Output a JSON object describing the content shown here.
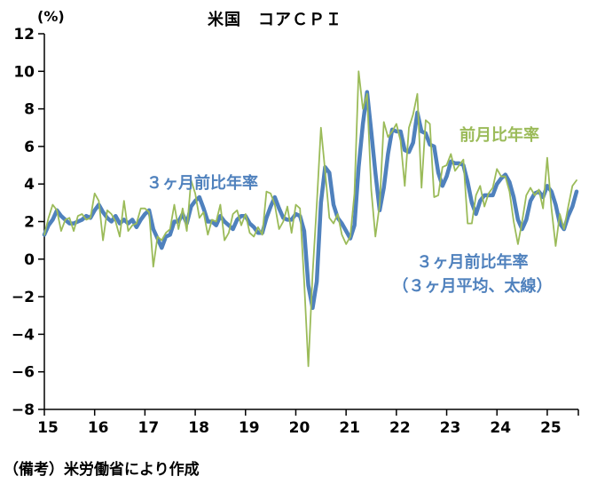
{
  "header": {
    "title": "米国　コアＣＰＩ",
    "unit_label": "(%)"
  },
  "note": "（備考）米労働省により作成",
  "annotations": {
    "three_month": "３ヶ月前比年率",
    "monthly": "前月比年率",
    "three_month_avg_line1": "３ヶ月前比年率",
    "three_month_avg_line2": "（３ヶ月平均、太線）"
  },
  "colors": {
    "monthly": "#9BBB59",
    "three_month_avg": "#4F81BD",
    "axis": "#000000"
  },
  "chart_data": {
    "type": "line",
    "title": "米国　コアＣＰＩ",
    "ylabel": "(%)",
    "ylim": [
      -8,
      12
    ],
    "ytick_step": 2,
    "ytick_labels": [
      "12",
      "10",
      "8",
      "6",
      "4",
      "2",
      "0",
      "−2",
      "−4",
      "−6",
      "−8"
    ],
    "x_tick_labels": [
      "15",
      "16",
      "17",
      "18",
      "19",
      "20",
      "21",
      "22",
      "23",
      "24",
      "25"
    ],
    "x_frequency": "monthly",
    "x_range": "2015-01 to 2025-08",
    "grid": false,
    "source_note": "（備考）米労働省により作成",
    "series": [
      {
        "id": "three_month_avg",
        "name": "３ヶ月前比年率（３ヶ月平均、太線）",
        "color": "#4F81BD",
        "width": 4.5,
        "values": [
          1.3,
          1.8,
          2.1,
          2.6,
          2.3,
          2.1,
          1.9,
          1.9,
          2.0,
          2.1,
          2.3,
          2.2,
          2.6,
          2.9,
          2.5,
          2.2,
          2.0,
          2.3,
          1.9,
          2.1,
          1.9,
          2.1,
          1.7,
          2.1,
          2.4,
          2.6,
          1.6,
          1.1,
          0.6,
          1.2,
          1.3,
          2.0,
          2.0,
          2.4,
          1.9,
          2.8,
          3.1,
          3.3,
          2.7,
          2.0,
          2.0,
          1.8,
          2.3,
          2.0,
          1.8,
          1.6,
          2.1,
          2.3,
          2.3,
          1.9,
          1.7,
          1.4,
          1.4,
          2.2,
          2.8,
          3.3,
          2.7,
          2.2,
          2.1,
          2.1,
          2.4,
          2.3,
          1.5,
          -1.4,
          -2.6,
          -1.2,
          3.0,
          4.9,
          4.6,
          2.9,
          2.2,
          1.9,
          1.5,
          1.1,
          1.8,
          4.9,
          7.2,
          8.9,
          6.8,
          4.6,
          2.6,
          3.8,
          5.6,
          6.9,
          6.8,
          6.8,
          5.8,
          5.7,
          6.2,
          7.8,
          6.8,
          6.7,
          6.1,
          6.0,
          4.6,
          3.9,
          4.4,
          5.2,
          5.1,
          5.1,
          5.0,
          4.1,
          3.0,
          2.4,
          3.1,
          3.4,
          3.4,
          3.4,
          4.0,
          4.3,
          4.5,
          4.1,
          3.3,
          2.1,
          1.6,
          2.1,
          3.1,
          3.5,
          3.6,
          3.3,
          3.9,
          3.6,
          2.9,
          1.9,
          1.6,
          2.3,
          2.8,
          3.6
        ]
      },
      {
        "id": "monthly",
        "name": "前月比年率",
        "color": "#9BBB59",
        "width": 1.8,
        "values": [
          1.3,
          2.2,
          2.9,
          2.6,
          1.5,
          2.1,
          2.2,
          1.5,
          2.3,
          2.4,
          2.1,
          2.2,
          3.5,
          3.1,
          1.0,
          2.6,
          2.4,
          2.0,
          1.2,
          3.1,
          1.5,
          1.8,
          1.9,
          2.7,
          2.7,
          2.5,
          -0.4,
          1.2,
          1.0,
          1.4,
          1.6,
          2.9,
          1.6,
          2.7,
          1.5,
          4.2,
          3.5,
          2.2,
          2.5,
          1.3,
          2.1,
          2.0,
          2.9,
          1.0,
          1.4,
          2.4,
          2.6,
          1.8,
          2.4,
          1.4,
          1.2,
          1.7,
          1.3,
          3.6,
          3.5,
          2.9,
          1.6,
          2.0,
          2.8,
          1.4,
          2.9,
          2.7,
          -1.2,
          -5.7,
          -0.8,
          2.9,
          7.0,
          4.7,
          2.2,
          1.9,
          2.4,
          1.3,
          0.8,
          1.2,
          3.5,
          10.0,
          8.0,
          8.8,
          3.7,
          1.2,
          2.9,
          7.3,
          6.5,
          6.8,
          7.2,
          6.3,
          3.9,
          7.0,
          7.7,
          8.8,
          3.8,
          7.4,
          7.2,
          3.3,
          3.4,
          4.9,
          5.0,
          5.6,
          4.7,
          5.0,
          5.3,
          1.9,
          1.9,
          3.4,
          3.9,
          2.8,
          3.5,
          3.8,
          4.8,
          4.4,
          4.4,
          3.6,
          2.0,
          0.8,
          2.0,
          3.4,
          3.8,
          3.4,
          3.7,
          2.7,
          5.4,
          2.7,
          0.7,
          2.4,
          1.6,
          2.8,
          3.9,
          4.2
        ]
      }
    ]
  }
}
